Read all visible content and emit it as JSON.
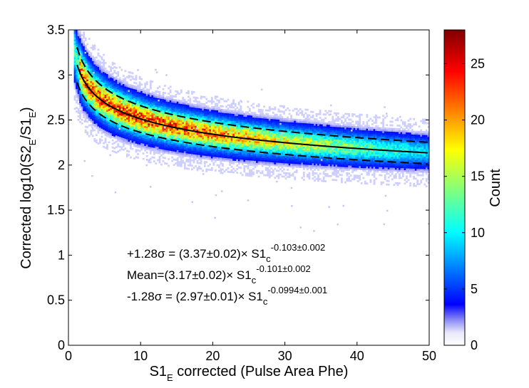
{
  "chart_data": {
    "type": "heatmap",
    "xlabel": {
      "base": "S1",
      "sub": "E",
      "rest": " corrected (Pulse Area Phe)"
    },
    "ylabel": {
      "pre": "Corrected log10(S2",
      "sub1": "E",
      "mid": "/S1",
      "sub2": "E",
      "post": ")"
    },
    "xlim": [
      0,
      50
    ],
    "ylim": [
      0,
      3.5
    ],
    "xticks": [
      "0",
      "10",
      "20",
      "30",
      "40",
      "50"
    ],
    "yticks": [
      "0",
      "0.5",
      "1",
      "1.5",
      "2",
      "2.5",
      "3",
      "3.5"
    ],
    "colorbar": {
      "label": "Count",
      "range": [
        0,
        28
      ],
      "ticks": [
        "0",
        "5",
        "10",
        "15",
        "20",
        "25"
      ]
    },
    "band_fits": [
      {
        "name": "+1.28σ",
        "coef": 3.37,
        "exp": -0.103,
        "style": "dashed"
      },
      {
        "name": "Mean",
        "coef": 3.17,
        "exp": -0.101,
        "style": "solid"
      },
      {
        "name": "-1.28σ",
        "coef": 2.97,
        "exp": -0.0994,
        "style": "dashed"
      }
    ],
    "annotations": [
      {
        "text": "+1.28σ = (3.37±0.02)× S1",
        "sub": "c",
        "sup": "-0.103±0.002"
      },
      {
        "text": "Mean=(3.17±0.02)× S1",
        "sub": "c",
        "sup": "-0.101±0.002"
      },
      {
        "text": "-1.28σ = (2.97±0.01)× S1",
        "sub": "c",
        "sup": "-0.0994±0.001"
      }
    ]
  }
}
